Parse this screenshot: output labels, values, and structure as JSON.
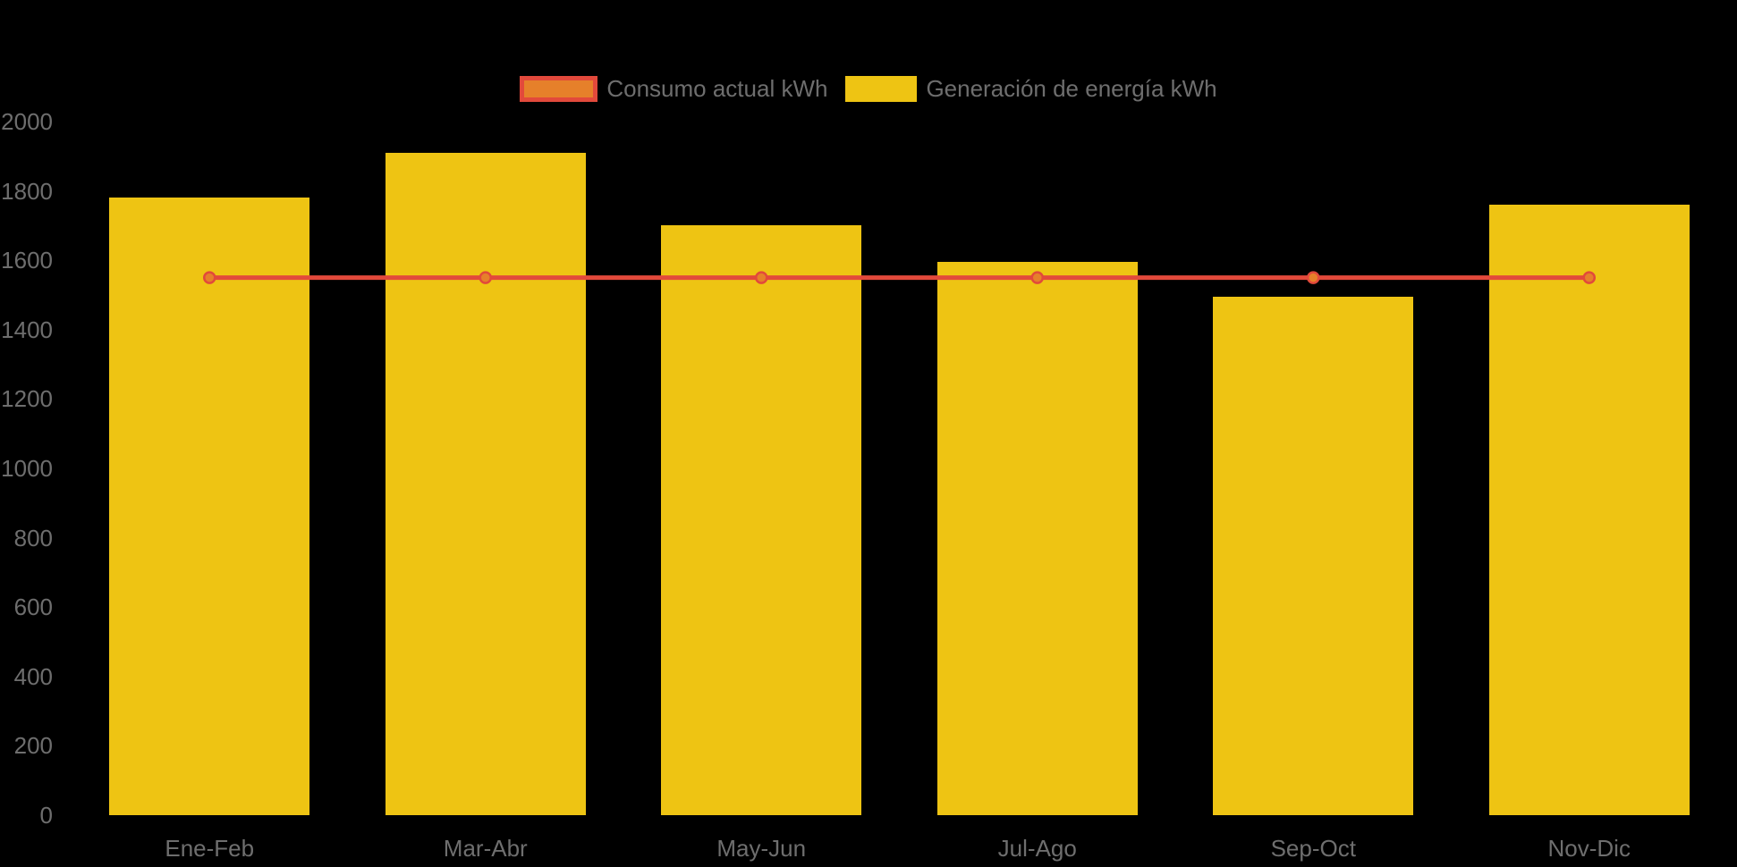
{
  "chart_data": {
    "type": "bar",
    "categories": [
      "Ene-Feb",
      "Mar-Abr",
      "May-Jun",
      "Jul-Ago",
      "Sep-Oct",
      "Nov-Dic"
    ],
    "series": [
      {
        "name": "Consumo actual kWh",
        "type": "line",
        "values": [
          1550,
          1550,
          1550,
          1550,
          1550,
          1550
        ],
        "line_color": "#E2493B",
        "marker_fill": "#E6802A",
        "line_width": 5
      },
      {
        "name": "Generación de energía kWh",
        "type": "bar",
        "values": [
          1780,
          1910,
          1700,
          1595,
          1495,
          1760
        ],
        "bar_color": "#EEC413"
      }
    ],
    "title": "",
    "xlabel": "",
    "ylabel": "",
    "ylim": [
      0,
      2000
    ],
    "y_tick_step": 200,
    "y_tick_labels": [
      "0",
      "200",
      "400",
      "600",
      "800",
      "1000",
      "1200",
      "1400",
      "1600",
      "1800",
      "2000"
    ],
    "grid": false,
    "legend_position": "top-center",
    "background_color": "#000000",
    "axis_text_color": "#6E6E6E"
  },
  "legend": {
    "items": [
      {
        "label": "Consumo actual kWh",
        "swatch_fill": "#E6802A",
        "swatch_border": "#E2493B"
      },
      {
        "label": "Generación de energía kWh",
        "swatch_fill": "#EEC413",
        "swatch_border": "#EEC413"
      }
    ]
  }
}
